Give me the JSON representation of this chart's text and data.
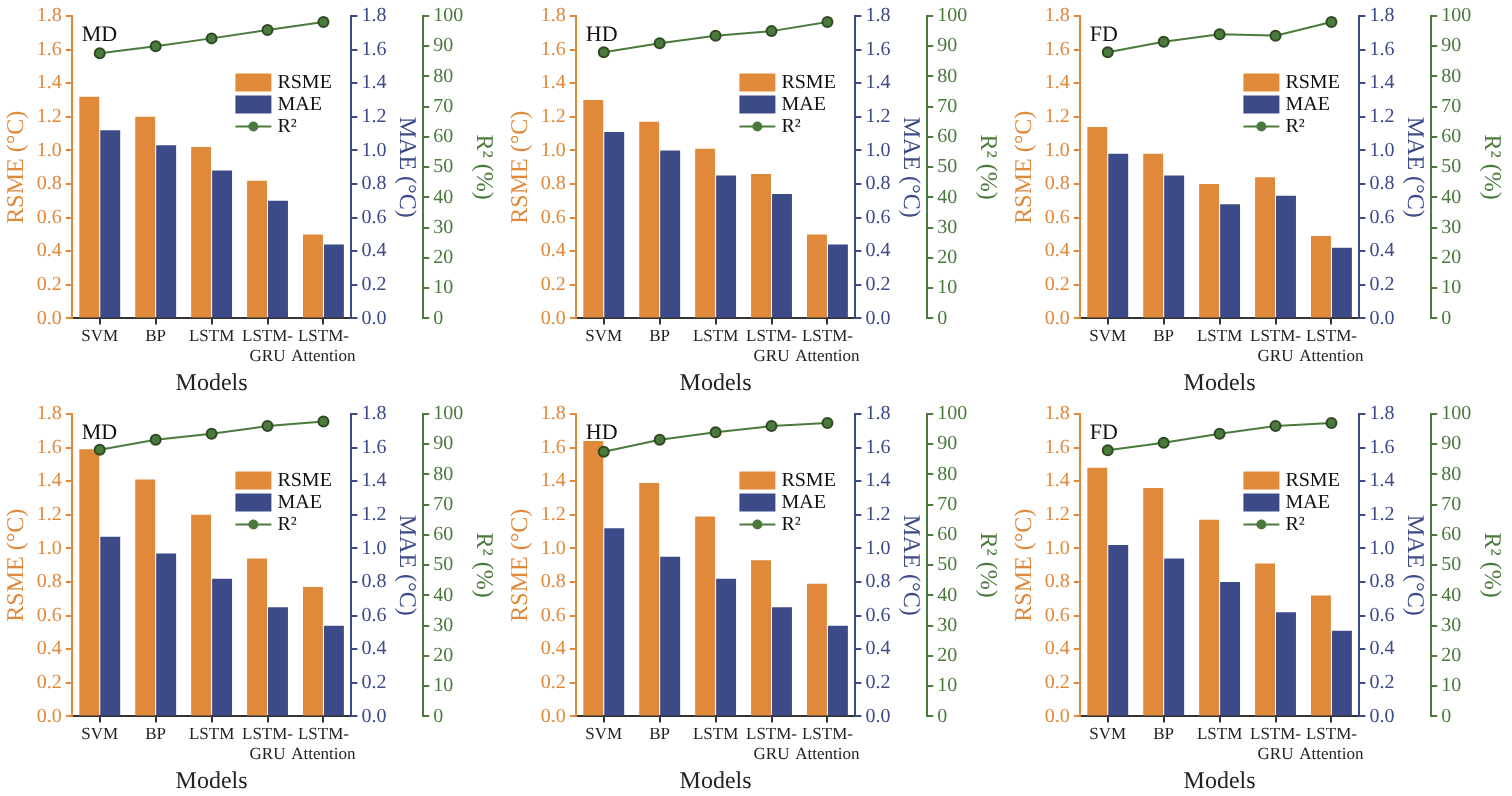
{
  "chart_data": [
    {
      "type": "bar",
      "title": "MD",
      "xlabel": "Models",
      "ylabel": "RSME (°C)",
      "y2label": "MAE (°C)",
      "y3label": "R² (%)",
      "categories": [
        "SVM",
        "BP",
        "LSTM",
        "LSTM-GRU",
        "LSTM-Attention"
      ],
      "series": [
        {
          "name": "RSME",
          "type": "bar",
          "color": "#e0893a",
          "values": [
            1.32,
            1.2,
            1.02,
            0.82,
            0.5
          ]
        },
        {
          "name": "MAE",
          "type": "bar",
          "axis": "y2",
          "color": "#3d4a88",
          "values": [
            1.12,
            1.03,
            0.88,
            0.7,
            0.44
          ]
        },
        {
          "name": "R²",
          "type": "line",
          "axis": "y3",
          "color": "#4a7a3c",
          "values": [
            87.7,
            90,
            92.6,
            95.4,
            98
          ]
        }
      ],
      "ylim": [
        0,
        1.8
      ],
      "yticks": [
        {
          "value": 0,
          "label": "0.0"
        },
        {
          "value": 0.2,
          "label": "0.2"
        },
        {
          "value": 0.4,
          "label": "0.4"
        },
        {
          "value": 0.6,
          "label": "0.6"
        },
        {
          "value": 0.8,
          "label": "0.8"
        },
        {
          "value": 1,
          "label": "1.0"
        },
        {
          "value": 1.2,
          "label": "1.2"
        },
        {
          "value": 1.4,
          "label": "1.4"
        },
        {
          "value": 1.6,
          "label": "1.6"
        },
        {
          "value": 1.8,
          "label": "1.8"
        }
      ],
      "y2lim": [
        0,
        1.8
      ],
      "y2ticks": [
        {
          "value": 0,
          "label": "0.0"
        },
        {
          "value": 0.2,
          "label": "0.2"
        },
        {
          "value": 0.4,
          "label": "0.4"
        },
        {
          "value": 0.6,
          "label": "0.6"
        },
        {
          "value": 0.8,
          "label": "0.8"
        },
        {
          "value": 1,
          "label": "1.0"
        },
        {
          "value": 1.2,
          "label": "1.2"
        },
        {
          "value": 1.4,
          "label": "1.4"
        },
        {
          "value": 1.6,
          "label": "1.6"
        },
        {
          "value": 1.8,
          "label": "1.8"
        }
      ],
      "y3lim": [
        0,
        100
      ],
      "y3ticks": [
        0,
        10,
        20,
        30,
        40,
        50,
        60,
        70,
        80,
        90,
        100
      ],
      "legend": "top right",
      "marker": "circle"
    },
    {
      "type": "bar",
      "title": "HD",
      "xlabel": "Models",
      "ylabel": "RSME (°C)",
      "y2label": "MAE (°C)",
      "y3label": "R² (%)",
      "categories": [
        "SVM",
        "BP",
        "LSTM",
        "LSTM-GRU",
        "LSTM-Attention"
      ],
      "series": [
        {
          "name": "RSME",
          "type": "bar",
          "color": "#e0893a",
          "values": [
            1.3,
            1.17,
            1.01,
            0.86,
            0.5
          ]
        },
        {
          "name": "MAE",
          "type": "bar",
          "axis": "y2",
          "color": "#3d4a88",
          "values": [
            1.11,
            1.0,
            0.85,
            0.74,
            0.44
          ]
        },
        {
          "name": "R²",
          "type": "line",
          "axis": "y3",
          "color": "#4a7a3c",
          "values": [
            88,
            91,
            93.5,
            95,
            98
          ]
        }
      ],
      "ylim": [
        0,
        1.8
      ],
      "yticks": [
        {
          "value": 0,
          "label": "0.0"
        },
        {
          "value": 0.2,
          "label": "0.2"
        },
        {
          "value": 0.4,
          "label": "0.4"
        },
        {
          "value": 0.6,
          "label": "0.6"
        },
        {
          "value": 0.8,
          "label": "0.8"
        },
        {
          "value": 1,
          "label": "1.0"
        },
        {
          "value": 1.2,
          "label": "1.2"
        },
        {
          "value": 1.4,
          "label": "1.4"
        },
        {
          "value": 1.6,
          "label": "1.6"
        },
        {
          "value": 1.8,
          "label": "1.8"
        }
      ],
      "y2lim": [
        0,
        1.8
      ],
      "y2ticks": [
        {
          "value": 0,
          "label": "0.0"
        },
        {
          "value": 0.2,
          "label": "0.2"
        },
        {
          "value": 0.4,
          "label": "0.4"
        },
        {
          "value": 0.6,
          "label": "0.6"
        },
        {
          "value": 0.8,
          "label": "0.8"
        },
        {
          "value": 1,
          "label": "1.0"
        },
        {
          "value": 1.2,
          "label": "1.2"
        },
        {
          "value": 1.4,
          "label": "1.4"
        },
        {
          "value": 1.6,
          "label": "1.6"
        },
        {
          "value": 1.8,
          "label": "1.8"
        }
      ],
      "y3lim": [
        0,
        100
      ],
      "y3ticks": [
        0,
        10,
        20,
        30,
        40,
        50,
        60,
        70,
        80,
        90,
        100
      ],
      "legend": "top right",
      "marker": "circle"
    },
    {
      "type": "bar",
      "title": "FD",
      "xlabel": "Models",
      "ylabel": "RSME (°C)",
      "y2label": "MAE (°C)",
      "y3label": "R² (%)",
      "categories": [
        "SVM",
        "BP",
        "LSTM",
        "LSTM-GRU",
        "LSTM-Attention"
      ],
      "series": [
        {
          "name": "RSME",
          "type": "bar",
          "color": "#e0893a",
          "values": [
            1.14,
            0.98,
            0.8,
            0.84,
            0.49
          ]
        },
        {
          "name": "MAE",
          "type": "bar",
          "axis": "y2",
          "color": "#3d4a88",
          "values": [
            0.98,
            0.85,
            0.68,
            0.73,
            0.42
          ]
        },
        {
          "name": "R²",
          "type": "line",
          "axis": "y3",
          "color": "#4a7a3c",
          "values": [
            88,
            91.5,
            94,
            93.5,
            98
          ]
        }
      ],
      "ylim": [
        0,
        1.8
      ],
      "yticks": [
        {
          "value": 0,
          "label": "0.0"
        },
        {
          "value": 0.2,
          "label": "0.2"
        },
        {
          "value": 0.4,
          "label": "0.4"
        },
        {
          "value": 0.6,
          "label": "0.6"
        },
        {
          "value": 0.8,
          "label": "0.8"
        },
        {
          "value": 1,
          "label": "1.0"
        },
        {
          "value": 1.2,
          "label": "1.2"
        },
        {
          "value": 1.4,
          "label": "1.4"
        },
        {
          "value": 1.6,
          "label": "1.6"
        },
        {
          "value": 1.8,
          "label": "1.8"
        }
      ],
      "y2lim": [
        0,
        1.8
      ],
      "y2ticks": [
        {
          "value": 0,
          "label": "0.0"
        },
        {
          "value": 0.2,
          "label": "0.2"
        },
        {
          "value": 0.4,
          "label": "0.4"
        },
        {
          "value": 0.6,
          "label": "0.6"
        },
        {
          "value": 0.8,
          "label": "0.8"
        },
        {
          "value": 1,
          "label": "1.0"
        },
        {
          "value": 1.2,
          "label": "1.2"
        },
        {
          "value": 1.4,
          "label": "1.4"
        },
        {
          "value": 1.6,
          "label": "1.6"
        },
        {
          "value": 1.8,
          "label": "1.8"
        }
      ],
      "y3lim": [
        0,
        100
      ],
      "y3ticks": [
        0,
        10,
        20,
        30,
        40,
        50,
        60,
        70,
        80,
        90,
        100
      ],
      "legend": "top right",
      "marker": "circle"
    },
    {
      "type": "bar",
      "title": "MD",
      "xlabel": "Models",
      "ylabel": "RSME (°C)",
      "y2label": "MAE (°C)",
      "y3label": "R² (%)",
      "categories": [
        "SVM",
        "BP",
        "LSTM",
        "LSTM-GRU",
        "LSTM-Attention"
      ],
      "series": [
        {
          "name": "RSME",
          "type": "bar",
          "color": "#e0893a",
          "values": [
            1.59,
            1.41,
            1.2,
            0.94,
            0.77
          ]
        },
        {
          "name": "MAE",
          "type": "bar",
          "axis": "y2",
          "color": "#3d4a88",
          "values": [
            1.07,
            0.97,
            0.82,
            0.65,
            0.54
          ]
        },
        {
          "name": "R²",
          "type": "line",
          "axis": "y3",
          "color": "#4a7a3c",
          "values": [
            88.2,
            91.5,
            93.5,
            96,
            97.5
          ]
        }
      ],
      "ylim": [
        0,
        1.8
      ],
      "yticks": [
        {
          "value": 0,
          "label": "0.0"
        },
        {
          "value": 0.2,
          "label": "0.2"
        },
        {
          "value": 0.4,
          "label": "0.4"
        },
        {
          "value": 0.6,
          "label": "0.6"
        },
        {
          "value": 0.8,
          "label": "0.8"
        },
        {
          "value": 1,
          "label": "1.0"
        },
        {
          "value": 1.2,
          "label": "1.2"
        },
        {
          "value": 1.4,
          "label": "1.4"
        },
        {
          "value": 1.6,
          "label": "1.6"
        },
        {
          "value": 1.8,
          "label": "1.8"
        }
      ],
      "y2lim": [
        0,
        1.8
      ],
      "y2ticks": [
        {
          "value": 0,
          "label": "0.0"
        },
        {
          "value": 0.2,
          "label": "0.2"
        },
        {
          "value": 0.4,
          "label": "0.4"
        },
        {
          "value": 0.6,
          "label": "0.6"
        },
        {
          "value": 0.8,
          "label": "0.8"
        },
        {
          "value": 1,
          "label": "1.0"
        },
        {
          "value": 1.2,
          "label": "1.2"
        },
        {
          "value": 1.4,
          "label": "1.4"
        },
        {
          "value": 1.6,
          "label": "1.6"
        },
        {
          "value": 1.8,
          "label": "1.8"
        }
      ],
      "y3lim": [
        0,
        100
      ],
      "y3ticks": [
        0,
        10,
        20,
        30,
        40,
        50,
        60,
        70,
        80,
        90,
        100
      ],
      "legend": "top right",
      "marker": "circle"
    },
    {
      "type": "bar",
      "title": "HD",
      "xlabel": "Models",
      "ylabel": "RSME (°C)",
      "y2label": "MAE (°C)",
      "y3label": "R² (%)",
      "categories": [
        "SVM",
        "BP",
        "LSTM",
        "LSTM-GRU",
        "LSTM-Attention"
      ],
      "series": [
        {
          "name": "RSME",
          "type": "bar",
          "color": "#e0893a",
          "values": [
            1.64,
            1.39,
            1.19,
            0.93,
            0.79
          ]
        },
        {
          "name": "MAE",
          "type": "bar",
          "axis": "y2",
          "color": "#3d4a88",
          "values": [
            1.12,
            0.95,
            0.82,
            0.65,
            0.54
          ]
        },
        {
          "name": "R²",
          "type": "line",
          "axis": "y3",
          "color": "#4a7a3c",
          "values": [
            87.5,
            91.5,
            94,
            96,
            97
          ]
        }
      ],
      "ylim": [
        0,
        1.8
      ],
      "yticks": [
        {
          "value": 0,
          "label": "0.0"
        },
        {
          "value": 0.2,
          "label": "0.2"
        },
        {
          "value": 0.4,
          "label": "0.4"
        },
        {
          "value": 0.6,
          "label": "0.6"
        },
        {
          "value": 0.8,
          "label": "0.8"
        },
        {
          "value": 1,
          "label": "1.0"
        },
        {
          "value": 1.2,
          "label": "1.2"
        },
        {
          "value": 1.4,
          "label": "1.4"
        },
        {
          "value": 1.6,
          "label": "1.6"
        },
        {
          "value": 1.8,
          "label": "1.8"
        }
      ],
      "y2lim": [
        0,
        1.8
      ],
      "y2ticks": [
        {
          "value": 0,
          "label": "0.0"
        },
        {
          "value": 0.2,
          "label": "0.2"
        },
        {
          "value": 0.4,
          "label": "0.4"
        },
        {
          "value": 0.6,
          "label": "0.6"
        },
        {
          "value": 0.8,
          "label": "0.8"
        },
        {
          "value": 1,
          "label": "1.0"
        },
        {
          "value": 1.2,
          "label": "1.2"
        },
        {
          "value": 1.4,
          "label": "1.4"
        },
        {
          "value": 1.6,
          "label": "1.6"
        },
        {
          "value": 1.8,
          "label": "1.8"
        }
      ],
      "y3lim": [
        0,
        100
      ],
      "y3ticks": [
        0,
        10,
        20,
        30,
        40,
        50,
        60,
        70,
        80,
        90,
        100
      ],
      "legend": "top right",
      "marker": "circle"
    },
    {
      "type": "bar",
      "title": "FD",
      "xlabel": "Models",
      "ylabel": "RSME (°C)",
      "y2label": "MAE (°C)",
      "y3label": "R² (%)",
      "categories": [
        "SVM",
        "BP",
        "LSTM",
        "LSTM-GRU",
        "LSTM-Attention"
      ],
      "series": [
        {
          "name": "RSME",
          "type": "bar",
          "color": "#e0893a",
          "values": [
            1.48,
            1.36,
            1.17,
            0.91,
            0.72
          ]
        },
        {
          "name": "MAE",
          "type": "bar",
          "axis": "y2",
          "color": "#3d4a88",
          "values": [
            1.02,
            0.94,
            0.8,
            0.62,
            0.51
          ]
        },
        {
          "name": "R²",
          "type": "line",
          "axis": "y3",
          "color": "#4a7a3c",
          "values": [
            88,
            90.5,
            93.5,
            96,
            97
          ]
        }
      ],
      "ylim": [
        0,
        1.8
      ],
      "yticks": [
        {
          "value": 0,
          "label": "0.0"
        },
        {
          "value": 0.2,
          "label": "0.2"
        },
        {
          "value": 0.4,
          "label": "0.4"
        },
        {
          "value": 0.6,
          "label": "0.6"
        },
        {
          "value": 0.8,
          "label": "0.8"
        },
        {
          "value": 1,
          "label": "1.0"
        },
        {
          "value": 1.2,
          "label": "1.2"
        },
        {
          "value": 1.4,
          "label": "1.4"
        },
        {
          "value": 1.6,
          "label": "1.6"
        },
        {
          "value": 1.8,
          "label": "1.8"
        }
      ],
      "y2lim": [
        0,
        1.8
      ],
      "y2ticks": [
        {
          "value": 0,
          "label": "0.0"
        },
        {
          "value": 0.2,
          "label": "0.2"
        },
        {
          "value": 0.4,
          "label": "0.4"
        },
        {
          "value": 0.6,
          "label": "0.6"
        },
        {
          "value": 0.8,
          "label": "0.8"
        },
        {
          "value": 1,
          "label": "1.0"
        },
        {
          "value": 1.2,
          "label": "1.2"
        },
        {
          "value": 1.4,
          "label": "1.4"
        },
        {
          "value": 1.6,
          "label": "1.6"
        },
        {
          "value": 1.8,
          "label": "1.8"
        }
      ],
      "y3lim": [
        0,
        100
      ],
      "y3ticks": [
        0,
        10,
        20,
        30,
        40,
        50,
        60,
        70,
        80,
        90,
        100
      ],
      "legend": "top right",
      "marker": "circle"
    }
  ]
}
